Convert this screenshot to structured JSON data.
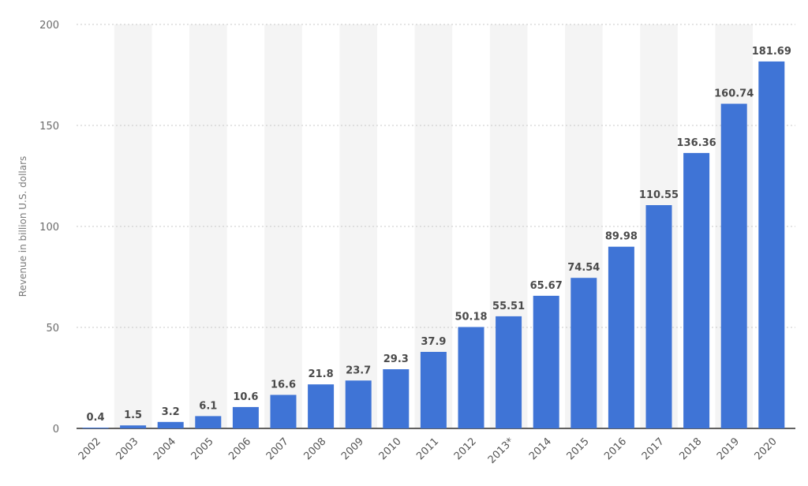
{
  "chart_data": {
    "type": "bar",
    "title": "",
    "xlabel": "",
    "ylabel": "Revenue in billion U.S. dollars",
    "ylim": [
      0,
      200
    ],
    "yticks": [
      0,
      50,
      100,
      150,
      200
    ],
    "grid": true,
    "alternating_column_shading": true,
    "colors": {
      "bar": "#3f74d6",
      "grid": "#c9c9c9",
      "shade": "#f4f4f4",
      "baseline": "#2b2b2b"
    },
    "categories": [
      "2002",
      "2003",
      "2004",
      "2005",
      "2006",
      "2007",
      "2008",
      "2009",
      "2010",
      "2011",
      "2012",
      "2013*",
      "2014",
      "2015",
      "2016",
      "2017",
      "2018",
      "2019",
      "2020"
    ],
    "values": [
      0.4,
      1.5,
      3.2,
      6.1,
      10.6,
      16.6,
      21.8,
      23.7,
      29.3,
      37.9,
      50.18,
      55.51,
      65.67,
      74.54,
      89.98,
      110.55,
      136.36,
      160.74,
      181.69
    ],
    "value_labels": [
      "0.4",
      "1.5",
      "3.2",
      "6.1",
      "10.6",
      "16.6",
      "21.8",
      "23.7",
      "29.3",
      "37.9",
      "50.18",
      "55.51",
      "65.67",
      "74.54",
      "89.98",
      "110.55",
      "136.36",
      "160.74",
      "181.69"
    ]
  }
}
